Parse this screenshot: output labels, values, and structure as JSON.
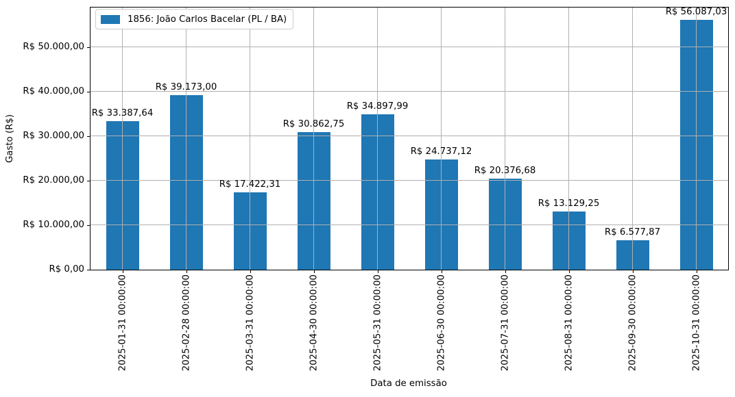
{
  "chart_data": {
    "type": "bar",
    "title": "",
    "xlabel": "Data de emissão",
    "ylabel": "Gasto (R$)",
    "legend": {
      "position": "upper left",
      "entries": [
        {
          "label": "1856: João Carlos Bacelar (PL / BA)",
          "color": "#1f77b4"
        }
      ]
    },
    "categories": [
      "2025-01-31 00:00:00",
      "2025-02-28 00:00:00",
      "2025-03-31 00:00:00",
      "2025-04-30 00:00:00",
      "2025-05-31 00:00:00",
      "2025-06-30 00:00:00",
      "2025-07-31 00:00:00",
      "2025-08-31 00:00:00",
      "2025-09-30 00:00:00",
      "2025-10-31 00:00:00"
    ],
    "series": [
      {
        "name": "1856: João Carlos Bacelar (PL / BA)",
        "values": [
          33387.64,
          39173.0,
          17422.31,
          30862.75,
          34897.99,
          24737.12,
          20376.68,
          13129.25,
          6577.87,
          56087.03
        ],
        "value_labels": [
          "R$ 33.387,64",
          "R$ 39.173,00",
          "R$ 17.422,31",
          "R$ 30.862,75",
          "R$ 34.897,99",
          "R$ 24.737,12",
          "R$ 20.376,68",
          "R$ 13.129,25",
          "R$ 6.577,87",
          "R$ 56.087,03"
        ]
      }
    ],
    "yticks": [
      {
        "value": 0,
        "label": "R$ 0,00"
      },
      {
        "value": 10000,
        "label": "R$ 10.000,00"
      },
      {
        "value": 20000,
        "label": "R$ 20.000,00"
      },
      {
        "value": 30000,
        "label": "R$ 30.000,00"
      },
      {
        "value": 40000,
        "label": "R$ 40.000,00"
      },
      {
        "value": 50000,
        "label": "R$ 50.000,00"
      }
    ],
    "ylim": [
      0,
      58891
    ],
    "grid": true,
    "grid_above_bars": true,
    "colors": {
      "bar": "#1f77b4",
      "grid": "#b0b0b0",
      "spine": "#000000",
      "legend_border": "#cccccc",
      "background": "#ffffff"
    }
  }
}
